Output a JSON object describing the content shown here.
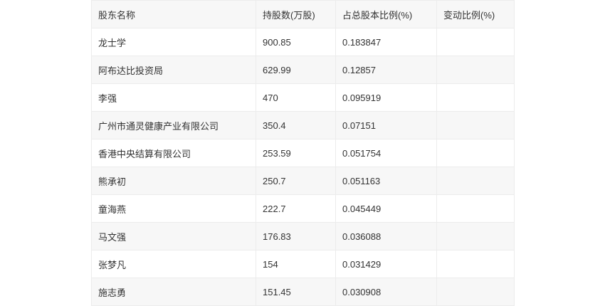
{
  "table": {
    "headers": [
      "股东名称",
      "持股数(万股)",
      "占总股本比例(%)",
      "变动比例(%)"
    ],
    "rows": [
      [
        "龙士学",
        "900.85",
        "0.183847",
        ""
      ],
      [
        "阿布达比投资局",
        "629.99",
        "0.12857",
        ""
      ],
      [
        "李强",
        "470",
        "0.095919",
        ""
      ],
      [
        "广州市通灵健康产业有限公司",
        "350.4",
        "0.07151",
        ""
      ],
      [
        "香港中央结算有限公司",
        "253.59",
        "0.051754",
        ""
      ],
      [
        "熊承初",
        "250.7",
        "0.051163",
        ""
      ],
      [
        "童海燕",
        "222.7",
        "0.045449",
        ""
      ],
      [
        "马文强",
        "176.83",
        "0.036088",
        ""
      ],
      [
        "张梦凡",
        "154",
        "0.031429",
        ""
      ],
      [
        "施志勇",
        "151.45",
        "0.030908",
        ""
      ]
    ]
  }
}
